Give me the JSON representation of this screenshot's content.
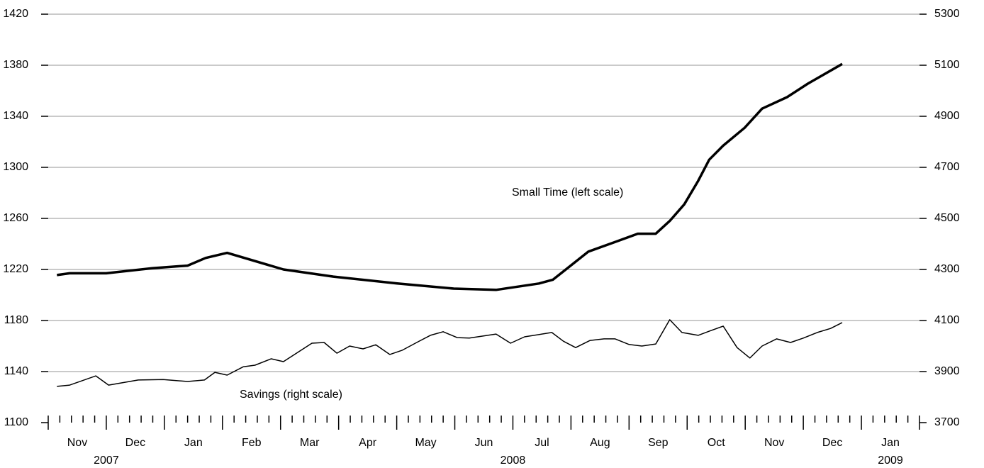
{
  "chart_data": {
    "type": "line",
    "categories": [
      "Nov",
      "Dec",
      "Jan",
      "Feb",
      "Mar",
      "Apr",
      "May",
      "Jun",
      "Jul",
      "Aug",
      "Sep",
      "Oct",
      "Nov",
      "Dec",
      "Jan"
    ],
    "years": [
      {
        "label": "2007",
        "start": 0,
        "end": 2
      },
      {
        "label": "2008",
        "start": 2,
        "end": 14
      },
      {
        "label": "2009",
        "start": 14,
        "end": 15
      }
    ],
    "xlim": [
      0,
      15
    ],
    "xticks": [
      0,
      0.2,
      0.4,
      0.6,
      0.8,
      1,
      1.2,
      1.4,
      1.6,
      1.8,
      2,
      2.2,
      2.4,
      2.6,
      2.8,
      3,
      3.2,
      3.4,
      3.6,
      3.8,
      4,
      4.2,
      4.4,
      4.6,
      4.8,
      5,
      5.2,
      5.4,
      5.6,
      5.8,
      6,
      6.2,
      6.4,
      6.6,
      6.8,
      7,
      7.2,
      7.4,
      7.6,
      7.8,
      8,
      8.2,
      8.4,
      8.6,
      8.8,
      9,
      9.2,
      9.4,
      9.6,
      9.8,
      10,
      10.2,
      10.4,
      10.6,
      10.8,
      11,
      11.2,
      11.4,
      11.6,
      11.8,
      12,
      12.2,
      12.4,
      12.6,
      12.8,
      13,
      13.2,
      13.4,
      13.6,
      13.8,
      14,
      14.2,
      14.4,
      14.6,
      14.8,
      15
    ],
    "ylim": [
      1100,
      1420
    ],
    "yticks": [
      1100,
      1140,
      1180,
      1220,
      1260,
      1300,
      1340,
      1380,
      1420
    ],
    "y2lim": [
      3700,
      5300
    ],
    "y2ticks": [
      3700,
      3900,
      4100,
      4300,
      4500,
      4700,
      4900,
      5100,
      5300
    ],
    "grid": true,
    "annotations": [
      "Small Time (left scale)",
      "Savings (right scale)"
    ],
    "series": [
      {
        "name": "Small Time",
        "color": "#000000",
        "width": 3.5,
        "axis": "y",
        "x": [
          0.15,
          0.37,
          1.0,
          1.79,
          2.4,
          2.71,
          3.08,
          4.05,
          4.91,
          6.01,
          6.98,
          7.71,
          8.45,
          8.69,
          9.3,
          9.79,
          10.15,
          10.46,
          10.7,
          10.95,
          11.19,
          11.38,
          11.62,
          11.99,
          12.29,
          12.72,
          13.08,
          13.67
        ],
        "values": [
          1215.6,
          1217,
          1217,
          1221,
          1223,
          1229,
          1233,
          1220,
          1214.4,
          1209,
          1205,
          1204,
          1209,
          1212,
          1234,
          1242,
          1248,
          1248,
          1258,
          1271,
          1289.4,
          1306,
          1317,
          1331,
          1346,
          1355,
          1365.6,
          1381
        ]
      },
      {
        "name": "Savings",
        "color": "#000000",
        "width": 1.5,
        "axis": "y2",
        "x": [
          0.15,
          0.37,
          0.82,
          1.04,
          1.55,
          1.98,
          2.4,
          2.69,
          2.87,
          3.08,
          3.36,
          3.56,
          3.84,
          4.05,
          4.54,
          4.75,
          4.97,
          5.19,
          5.42,
          5.64,
          5.88,
          6.09,
          6.37,
          6.58,
          6.8,
          7.04,
          7.25,
          7.71,
          7.96,
          8.2,
          8.67,
          8.87,
          9.08,
          9.33,
          9.57,
          9.76,
          10.0,
          10.22,
          10.46,
          10.7,
          10.91,
          11.19,
          11.38,
          11.62,
          11.86,
          12.08,
          12.29,
          12.54,
          12.78,
          13.0,
          13.24,
          13.47,
          13.67
        ],
        "values": [
          3842,
          3847,
          3883,
          3847,
          3867,
          3869,
          3861,
          3867,
          3897,
          3886,
          3919,
          3925,
          3950,
          3939,
          4011,
          4014,
          3972,
          4000,
          3989,
          4005,
          3967,
          3983,
          4017,
          4042,
          4056,
          4033,
          4031,
          4047,
          4011,
          4036,
          4053,
          4019,
          3994,
          4022,
          4028,
          4028,
          4006,
          4000,
          4008,
          4103,
          4053,
          4042,
          4058,
          4078,
          3994,
          3953,
          4000,
          4028,
          4014,
          4031,
          4053,
          4069,
          4092
        ]
      }
    ]
  }
}
